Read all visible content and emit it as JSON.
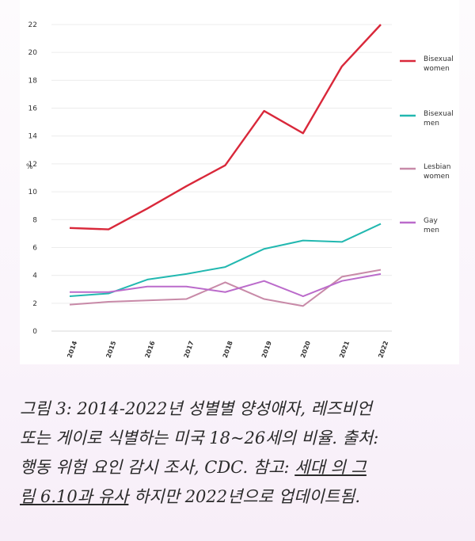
{
  "chart_data": {
    "type": "line",
    "title": "",
    "xlabel": "",
    "ylabel": "%",
    "x": [
      "2014",
      "2015",
      "2016",
      "2017",
      "2018",
      "2019",
      "2020",
      "2021",
      "2022"
    ],
    "ylim": [
      0,
      22
    ],
    "yticks": [
      "0",
      "2",
      "4",
      "6",
      "8",
      "10",
      "12",
      "14",
      "16",
      "18",
      "20",
      "22"
    ],
    "grid": true,
    "legend_position": "right",
    "series": [
      {
        "name": "Bisexual women",
        "name_lines": [
          "Bisexual",
          "women"
        ],
        "color": "#d9283a",
        "values": [
          7.4,
          7.3,
          8.8,
          10.4,
          11.9,
          15.8,
          14.2,
          19.0,
          22.0
        ]
      },
      {
        "name": "Bisexual men",
        "name_lines": [
          "Bisexual",
          "men"
        ],
        "color": "#22b8b0",
        "values": [
          2.5,
          2.7,
          3.7,
          4.1,
          4.6,
          5.9,
          6.5,
          6.4,
          7.7
        ]
      },
      {
        "name": "Lesbian women",
        "name_lines": [
          "Lesbian",
          "women"
        ],
        "color": "#c88aa8",
        "values": [
          1.9,
          2.1,
          2.2,
          2.3,
          3.5,
          2.3,
          1.8,
          3.9,
          4.4
        ]
      },
      {
        "name": "Gay men",
        "name_lines": [
          "Gay",
          "men"
        ],
        "color": "#bb6bcb",
        "values": [
          2.8,
          2.8,
          3.2,
          3.2,
          2.8,
          3.6,
          2.5,
          3.6,
          4.1
        ]
      }
    ]
  },
  "caption": {
    "line1": "그림 3: 2014-2022년 성별별 양성애자, 레즈비언",
    "line2": "또는 게이로 식별하는 미국 18~26세의 비율. 출처:",
    "line3_a": "행동 위험 요인 감시 조사, CDC. 참고: ",
    "line3_link": "세대 의 그",
    "line4_link": "림 6.10과 유사",
    "line4_b": " 하지만 2022년으로 업데이트됨."
  }
}
